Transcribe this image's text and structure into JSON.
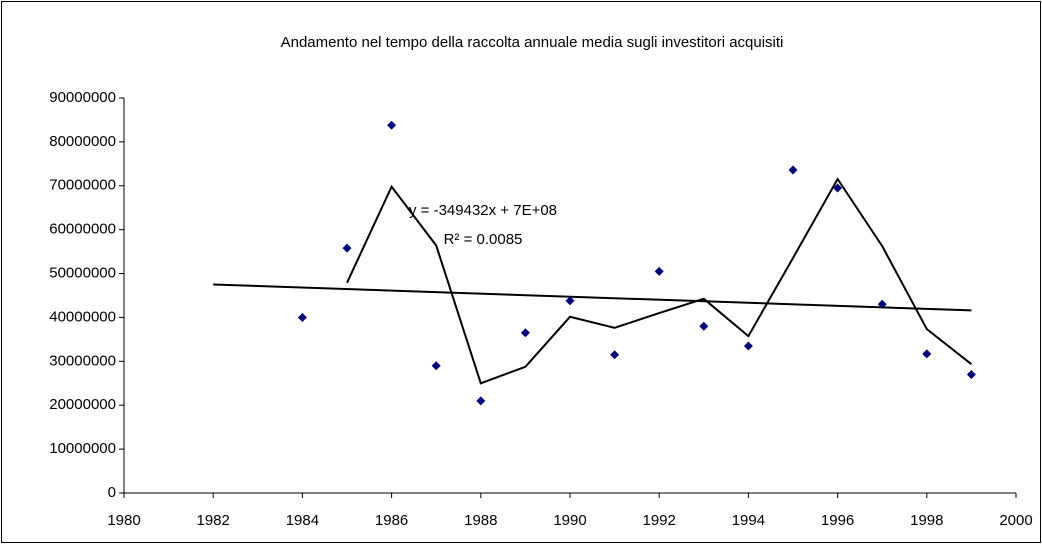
{
  "chart_data": {
    "type": "scatter",
    "title": "Andamento nel tempo della raccolta annuale media sugli investitori acquisiti",
    "x": [
      1984,
      1985,
      1986,
      1987,
      1988,
      1989,
      1990,
      1991,
      1992,
      1993,
      1994,
      1995,
      1996,
      1997,
      1998,
      1999
    ],
    "series": [
      {
        "color": "#000080",
        "values": [
          40000000,
          55800000,
          83800000,
          29000000,
          21000000,
          36500000,
          43800000,
          31500000,
          50500000,
          38000000,
          33500000,
          73600000,
          69500000,
          43000000,
          31700000,
          27000000
        ]
      }
    ],
    "moving_average": {
      "color": "#000000",
      "x": [
        1985,
        1986,
        1987,
        1988,
        1989,
        1990,
        1991,
        1992,
        1993,
        1994,
        1995,
        1996,
        1997,
        1998,
        1999
      ],
      "values": [
        47900000,
        69800000,
        56400000,
        25000000,
        28750000,
        40150000,
        37650000,
        41000000,
        44250000,
        35750000,
        53550000,
        71550000,
        56250000,
        37350000,
        29350000
      ]
    },
    "trendline": {
      "color": "#000000",
      "x": [
        1982,
        1999
      ],
      "values": [
        47500000,
        41600000
      ]
    },
    "annotations": [
      "y = -349432x + 7E+08",
      "R² = 0.0085"
    ],
    "xlim": [
      1980,
      2000
    ],
    "xticks": [
      1980,
      1982,
      1984,
      1986,
      1988,
      1990,
      1992,
      1994,
      1996,
      1998,
      2000
    ],
    "ylim": [
      0,
      90000000
    ],
    "yticks": [
      0,
      10000000,
      20000000,
      30000000,
      40000000,
      50000000,
      60000000,
      70000000,
      80000000,
      90000000
    ],
    "grid": false
  }
}
